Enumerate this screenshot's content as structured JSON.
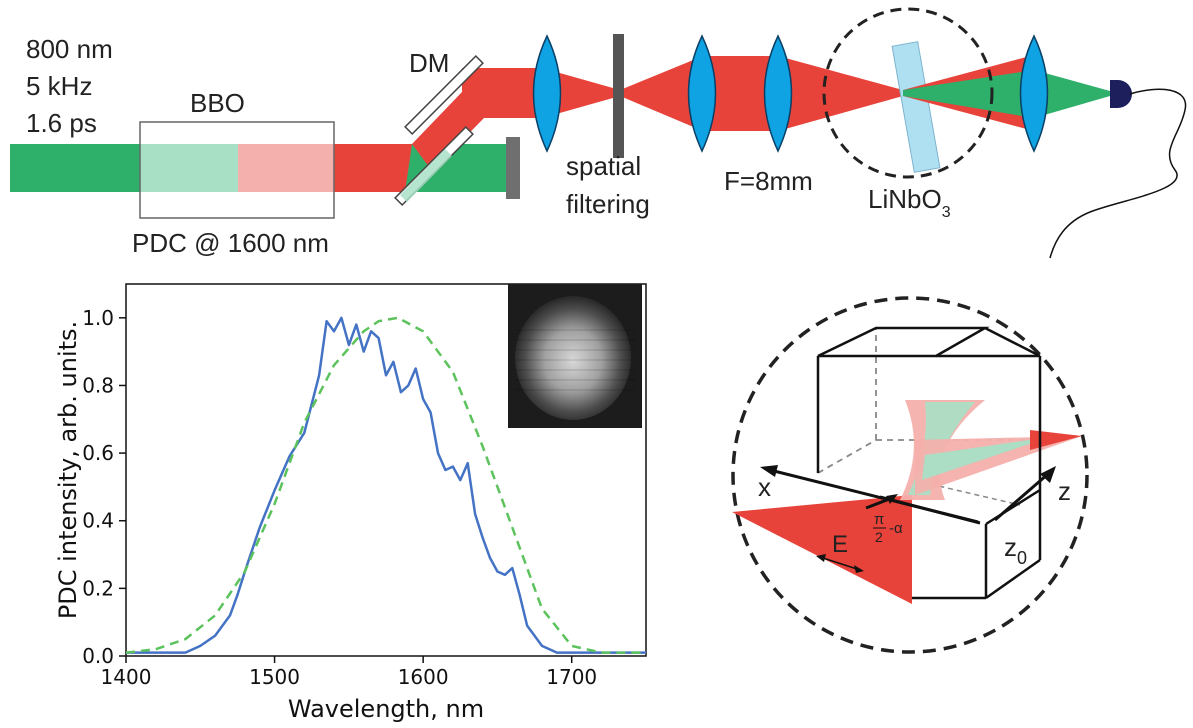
{
  "setup": {
    "laser_lines": [
      "800 nm",
      "5 kHz",
      "1.6 ps"
    ],
    "bbo_label": "BBO",
    "pdc_label": "PDC @ 1600 nm",
    "dm_label": "DM",
    "spatial_lines": [
      "spatial",
      "filtering"
    ],
    "focal_label": "F=8mm",
    "crystal_main": "LiNbO",
    "crystal_sub": "3",
    "colors": {
      "pump_green": "#2eb06b",
      "light_green": "#a8e0c6",
      "light_red": "#f4b0ac",
      "pdc_red": "#e8433a",
      "lens_blue": "#0fa3e3",
      "crystal_blue": "#aee0f2",
      "detector": "#1d1f5c"
    }
  },
  "inset": {
    "axis_x": "x",
    "axis_z": "z",
    "z0_main": "z",
    "z0_sub": "0",
    "field": "E",
    "angle_num": "π",
    "angle_den": "2",
    "angle_rest": "-α"
  },
  "chart_data": {
    "type": "line",
    "xlabel": "Wavelength, nm",
    "ylabel": "PDC intensity, arb. units.",
    "xlim": [
      1400,
      1750
    ],
    "ylim": [
      0,
      1.1
    ],
    "xticks": [
      1400,
      1500,
      1600,
      1700
    ],
    "yticks": [
      "0.0",
      "0.2",
      "0.4",
      "0.6",
      "0.8",
      "1.0"
    ],
    "grid": false,
    "series": [
      {
        "style": "solid",
        "color": "#4472c4",
        "x": [
          1400,
          1420,
          1440,
          1450,
          1460,
          1470,
          1475,
          1480,
          1490,
          1500,
          1510,
          1520,
          1530,
          1535,
          1540,
          1545,
          1550,
          1555,
          1560,
          1565,
          1570,
          1575,
          1580,
          1585,
          1590,
          1595,
          1600,
          1605,
          1610,
          1615,
          1620,
          1625,
          1630,
          1635,
          1640,
          1645,
          1650,
          1655,
          1660,
          1665,
          1670,
          1680,
          1690,
          1700,
          1720,
          1750
        ],
        "y": [
          0.01,
          0.01,
          0.01,
          0.03,
          0.06,
          0.12,
          0.18,
          0.25,
          0.38,
          0.49,
          0.59,
          0.66,
          0.83,
          0.99,
          0.96,
          1.0,
          0.92,
          0.98,
          0.9,
          0.96,
          0.94,
          0.83,
          0.87,
          0.78,
          0.8,
          0.85,
          0.76,
          0.72,
          0.6,
          0.55,
          0.56,
          0.52,
          0.57,
          0.42,
          0.35,
          0.29,
          0.25,
          0.24,
          0.26,
          0.18,
          0.09,
          0.03,
          0.01,
          0.01,
          0.01,
          0.01
        ]
      },
      {
        "style": "dashed",
        "color": "#5cc35c",
        "x": [
          1400,
          1420,
          1440,
          1460,
          1480,
          1500,
          1520,
          1540,
          1560,
          1570,
          1583,
          1600,
          1620,
          1640,
          1660,
          1680,
          1700,
          1720,
          1750
        ],
        "y": [
          0.01,
          0.02,
          0.05,
          0.12,
          0.25,
          0.45,
          0.69,
          0.86,
          0.96,
          0.99,
          1.0,
          0.96,
          0.84,
          0.62,
          0.38,
          0.14,
          0.03,
          0.01,
          0.01
        ]
      }
    ]
  }
}
